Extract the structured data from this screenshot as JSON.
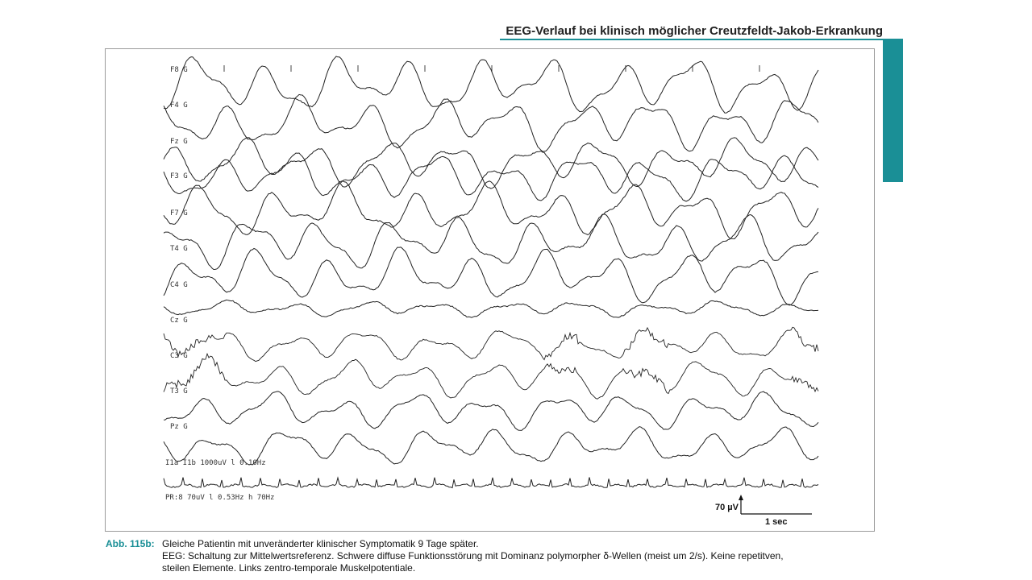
{
  "header": {
    "title": "EEG-Verlauf bei klinisch möglicher Creutzfeldt-Jakob-Erkrankung",
    "accent_color": "#1a8f96"
  },
  "figure": {
    "channels": [
      {
        "label": "F8 G"
      },
      {
        "label": "F4 G"
      },
      {
        "label": "Fz G"
      },
      {
        "label": "F3 G"
      },
      {
        "label": "F7 G"
      },
      {
        "label": "T4 G"
      },
      {
        "label": "C4 G"
      },
      {
        "label": "Cz G"
      },
      {
        "label": "C3 G"
      },
      {
        "label": "T3 G"
      },
      {
        "label": "Pz G"
      },
      {
        "label": "I1a I1b 1000uV l 0.10Hz"
      },
      {
        "label": "PR:8 70uV l 0.53Hz h 70Hz"
      }
    ],
    "scale": {
      "amplitude": "70 µV",
      "time": "1 sec"
    }
  },
  "caption": {
    "label": "Abb. 115b:",
    "line1": "Gleiche Patientin mit unveränderter klinischer Symptomatik 9 Tage später.",
    "line2": "EEG: Schaltung zur Mittelwertsreferenz. Schwere diffuse Funktionsstörung mit Dominanz polymorpher δ-Wellen (meist um 2/s). Keine repetitven,",
    "line3": "steilen Elemente. Links zentro-temporale Muskelpotentiale."
  }
}
